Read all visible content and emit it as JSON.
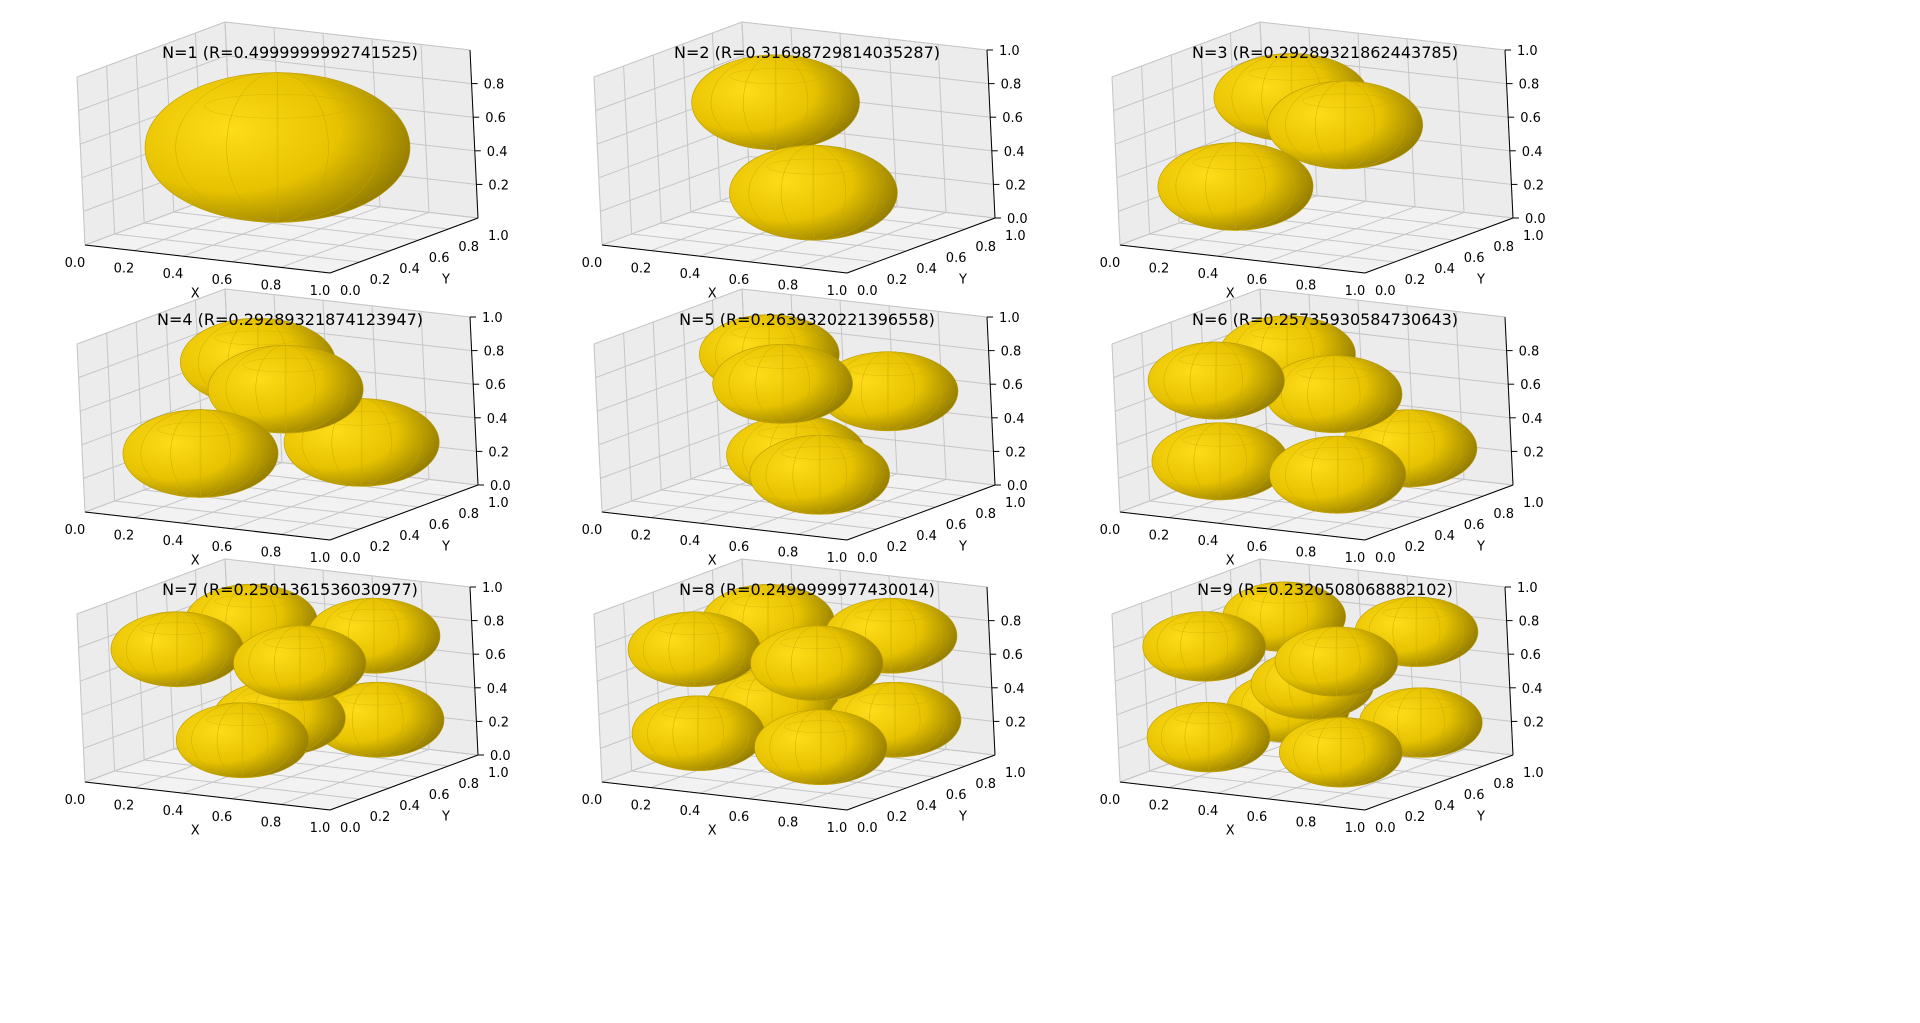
{
  "colors": {
    "sphere": "#e6c200",
    "pane": "#eeeeee",
    "grid": "#c6c6c6"
  },
  "axis_labels": {
    "x": "X",
    "y": "Y"
  },
  "chart_data": [
    {
      "type": "scatter",
      "title": "N=1 (R=0.4999999992741525)",
      "xlabel": "X",
      "ylabel": "Y",
      "xlim": [
        0.0,
        1.0
      ],
      "ylim": [
        0.0,
        1.0
      ],
      "zlim": [
        0.0,
        1.0
      ],
      "xticks": [
        "0.0",
        "0.2",
        "0.4",
        "0.6",
        "0.8",
        "1.0"
      ],
      "yticks": [
        "0.0",
        "0.2",
        "0.4",
        "0.6",
        "0.8",
        "1.0"
      ],
      "zticks": [
        "0.2",
        "0.4",
        "0.6",
        "0.8"
      ],
      "radius": 0.4999999992741525,
      "grid": true,
      "spheres": [
        [
          0.5,
          0.5,
          0.5
        ]
      ]
    },
    {
      "type": "scatter",
      "title": "N=2 (R=0.31698729814035287)",
      "xlabel": "X",
      "ylabel": "Y",
      "xlim": [
        0.0,
        1.0
      ],
      "ylim": [
        0.0,
        1.0
      ],
      "zlim": [
        0.0,
        1.0
      ],
      "xticks": [
        "0.0",
        "0.2",
        "0.4",
        "0.6",
        "0.8",
        "1.0"
      ],
      "yticks": [
        "0.0",
        "0.2",
        "0.4",
        "0.6",
        "0.8",
        "1.0"
      ],
      "zticks": [
        "0.0",
        "0.2",
        "0.4",
        "0.6",
        "0.8",
        "1.0"
      ],
      "radius": 0.31698729814035287,
      "grid": true,
      "spheres": [
        [
          0.68,
          0.32,
          0.32
        ],
        [
          0.32,
          0.68,
          0.68
        ]
      ]
    },
    {
      "type": "scatter",
      "title": "N=3 (R=0.29289321862443785)",
      "xlabel": "X",
      "ylabel": "Y",
      "xlim": [
        0.0,
        1.0
      ],
      "ylim": [
        0.0,
        1.0
      ],
      "zlim": [
        0.0,
        1.0
      ],
      "xticks": [
        "0.0",
        "0.2",
        "0.4",
        "0.6",
        "0.8",
        "1.0"
      ],
      "yticks": [
        "0.0",
        "0.2",
        "0.4",
        "0.6",
        "0.8",
        "1.0"
      ],
      "zticks": [
        "0.0",
        "0.2",
        "0.4",
        "0.6",
        "0.8",
        "1.0"
      ],
      "radius": 0.29289321862443785,
      "grid": true,
      "spheres": [
        [
          0.3,
          0.3,
          0.3
        ],
        [
          0.7,
          0.4,
          0.7
        ],
        [
          0.3,
          0.7,
          0.7
        ]
      ]
    },
    {
      "type": "scatter",
      "title": "N=4 (R=0.29289321874123947)",
      "xlabel": "X",
      "ylabel": "Y",
      "xlim": [
        0.0,
        1.0
      ],
      "ylim": [
        0.0,
        1.0
      ],
      "zlim": [
        0.0,
        1.0
      ],
      "xticks": [
        "0.0",
        "0.2",
        "0.4",
        "0.6",
        "0.8",
        "1.0"
      ],
      "yticks": [
        "0.0",
        "0.2",
        "0.4",
        "0.6",
        "0.8",
        "1.0"
      ],
      "zticks": [
        "0.0",
        "0.2",
        "0.4",
        "0.6",
        "0.8",
        "1.0"
      ],
      "radius": 0.29289321874123947,
      "grid": true,
      "spheres": [
        [
          0.3,
          0.3,
          0.3
        ],
        [
          0.71,
          0.71,
          0.3
        ],
        [
          0.6,
          0.4,
          0.7
        ],
        [
          0.3,
          0.71,
          0.71
        ]
      ]
    },
    {
      "type": "scatter",
      "title": "N=5 (R=0.2639320221396558)",
      "xlabel": "X",
      "ylabel": "Y",
      "xlim": [
        0.0,
        1.0
      ],
      "ylim": [
        0.0,
        1.0
      ],
      "zlim": [
        0.0,
        1.0
      ],
      "xticks": [
        "0.0",
        "0.2",
        "0.4",
        "0.6",
        "0.8",
        "1.0"
      ],
      "yticks": [
        "0.0",
        "0.2",
        "0.4",
        "0.6",
        "0.8",
        "1.0"
      ],
      "zticks": [
        "0.0",
        "0.2",
        "0.4",
        "0.6",
        "0.8",
        "1.0"
      ],
      "radius": 0.2639320221396558,
      "grid": true,
      "spheres": [
        [
          0.5,
          0.5,
          0.26
        ],
        [
          0.74,
          0.26,
          0.26
        ],
        [
          0.74,
          0.74,
          0.6
        ],
        [
          0.55,
          0.35,
          0.74
        ],
        [
          0.26,
          0.74,
          0.74
        ]
      ]
    },
    {
      "type": "scatter",
      "title": "N=6 (R=0.25735930584730643)",
      "xlabel": "X",
      "ylabel": "Y",
      "xlim": [
        0.0,
        1.0
      ],
      "ylim": [
        0.0,
        1.0
      ],
      "zlim": [
        0.0,
        1.0
      ],
      "xticks": [
        "0.0",
        "0.2",
        "0.4",
        "0.6",
        "0.8",
        "1.0"
      ],
      "yticks": [
        "0.0",
        "0.2",
        "0.4",
        "0.6",
        "0.8",
        "1.0"
      ],
      "zticks": [
        "0.2",
        "0.4",
        "0.6",
        "0.8"
      ],
      "radius": 0.25735930584730643,
      "grid": true,
      "spheres": [
        [
          0.26,
          0.26,
          0.26
        ],
        [
          0.74,
          0.26,
          0.26
        ],
        [
          0.74,
          0.74,
          0.26
        ],
        [
          0.26,
          0.74,
          0.74
        ],
        [
          0.74,
          0.26,
          0.74
        ],
        [
          0.26,
          0.26,
          0.74
        ]
      ]
    },
    {
      "type": "scatter",
      "title": "N=7 (R=0.2501361536030977)",
      "xlabel": "X",
      "ylabel": "Y",
      "xlim": [
        0.0,
        1.0
      ],
      "ylim": [
        0.0,
        1.0
      ],
      "zlim": [
        0.0,
        1.0
      ],
      "xticks": [
        "0.0",
        "0.2",
        "0.4",
        "0.6",
        "0.8",
        "1.0"
      ],
      "yticks": [
        "0.0",
        "0.2",
        "0.4",
        "0.6",
        "0.8",
        "1.0"
      ],
      "zticks": [
        "0.0",
        "0.2",
        "0.4",
        "0.6",
        "0.8",
        "1.0"
      ],
      "radius": 0.2501361536030977,
      "grid": true,
      "spheres": [
        [
          0.5,
          0.25,
          0.25
        ],
        [
          0.75,
          0.75,
          0.25
        ],
        [
          0.5,
          0.5,
          0.3
        ],
        [
          0.25,
          0.75,
          0.75
        ],
        [
          0.75,
          0.75,
          0.75
        ],
        [
          0.25,
          0.25,
          0.75
        ],
        [
          0.75,
          0.25,
          0.75
        ]
      ]
    },
    {
      "type": "scatter",
      "title": "N=8 (R=0.2499999977430014)",
      "xlabel": "X",
      "ylabel": "Y",
      "xlim": [
        0.0,
        1.0
      ],
      "ylim": [
        0.0,
        1.0
      ],
      "zlim": [
        0.0,
        1.0
      ],
      "xticks": [
        "0.0",
        "0.2",
        "0.4",
        "0.6",
        "0.8",
        "1.0"
      ],
      "yticks": [
        "0.0",
        "0.2",
        "0.4",
        "0.6",
        "0.8",
        "1.0"
      ],
      "zticks": [
        "0.2",
        "0.4",
        "0.6",
        "0.8"
      ],
      "radius": 0.2499999977430014,
      "grid": true,
      "spheres": [
        [
          0.25,
          0.25,
          0.25
        ],
        [
          0.75,
          0.25,
          0.25
        ],
        [
          0.25,
          0.75,
          0.25
        ],
        [
          0.75,
          0.75,
          0.25
        ],
        [
          0.25,
          0.25,
          0.75
        ],
        [
          0.75,
          0.25,
          0.75
        ],
        [
          0.25,
          0.75,
          0.75
        ],
        [
          0.75,
          0.75,
          0.75
        ]
      ]
    },
    {
      "type": "scatter",
      "title": "N=9 (R=0.2320508068882102)",
      "xlabel": "X",
      "ylabel": "Y",
      "xlim": [
        0.0,
        1.0
      ],
      "ylim": [
        0.0,
        1.0
      ],
      "zlim": [
        0.0,
        1.0
      ],
      "xticks": [
        "0.0",
        "0.2",
        "0.4",
        "0.6",
        "0.8",
        "1.0"
      ],
      "yticks": [
        "0.0",
        "0.2",
        "0.4",
        "0.6",
        "0.8",
        "1.0"
      ],
      "zticks": [
        "0.2",
        "0.4",
        "0.6",
        "0.8",
        "1.0"
      ],
      "radius": 0.2320508068882102,
      "grid": true,
      "spheres": [
        [
          0.23,
          0.23,
          0.23
        ],
        [
          0.77,
          0.23,
          0.23
        ],
        [
          0.23,
          0.77,
          0.23
        ],
        [
          0.77,
          0.77,
          0.23
        ],
        [
          0.5,
          0.5,
          0.5
        ],
        [
          0.23,
          0.23,
          0.77
        ],
        [
          0.77,
          0.23,
          0.77
        ],
        [
          0.23,
          0.77,
          0.77
        ],
        [
          0.77,
          0.77,
          0.77
        ]
      ]
    }
  ]
}
